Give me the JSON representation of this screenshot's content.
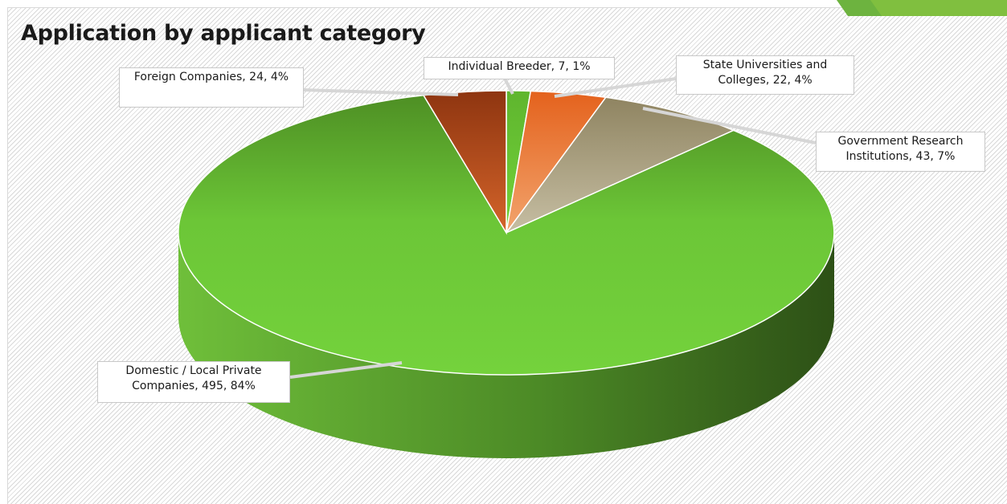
{
  "chart_data": {
    "type": "pie",
    "title": "Application by applicant category",
    "slices": [
      {
        "name": "Domestic / Local Private Companies",
        "value": 495,
        "percent": "84%",
        "color": "#72cf3b"
      },
      {
        "name": "Individual Breeder",
        "value": 7,
        "percent": "1%",
        "color": "#6fd135"
      },
      {
        "name": "State Universities and Colleges",
        "value": 22,
        "percent": "4%",
        "color": "#ea6a26"
      },
      {
        "name": "Government Research Institutions",
        "value": 43,
        "percent": "7%",
        "color": "#b3a989"
      },
      {
        "name": "Foreign Companies",
        "value": 24,
        "percent": "4%",
        "color": "#c94f1a"
      }
    ]
  },
  "labels": {
    "foreign": "Foreign Companies, 24, 4%",
    "individual": "Individual Breeder, 7, 1%",
    "state": "State Universities and Colleges, 22, 4%",
    "gov": "Government Research Institutions, 43, 7%",
    "domestic": "Domestic / Local Private Companies, 495, 84%"
  },
  "theme": {
    "accent_green": "#6db33f",
    "domestic_side_light": "#6fbf3a",
    "domestic_side_dark": "#2d5016"
  }
}
